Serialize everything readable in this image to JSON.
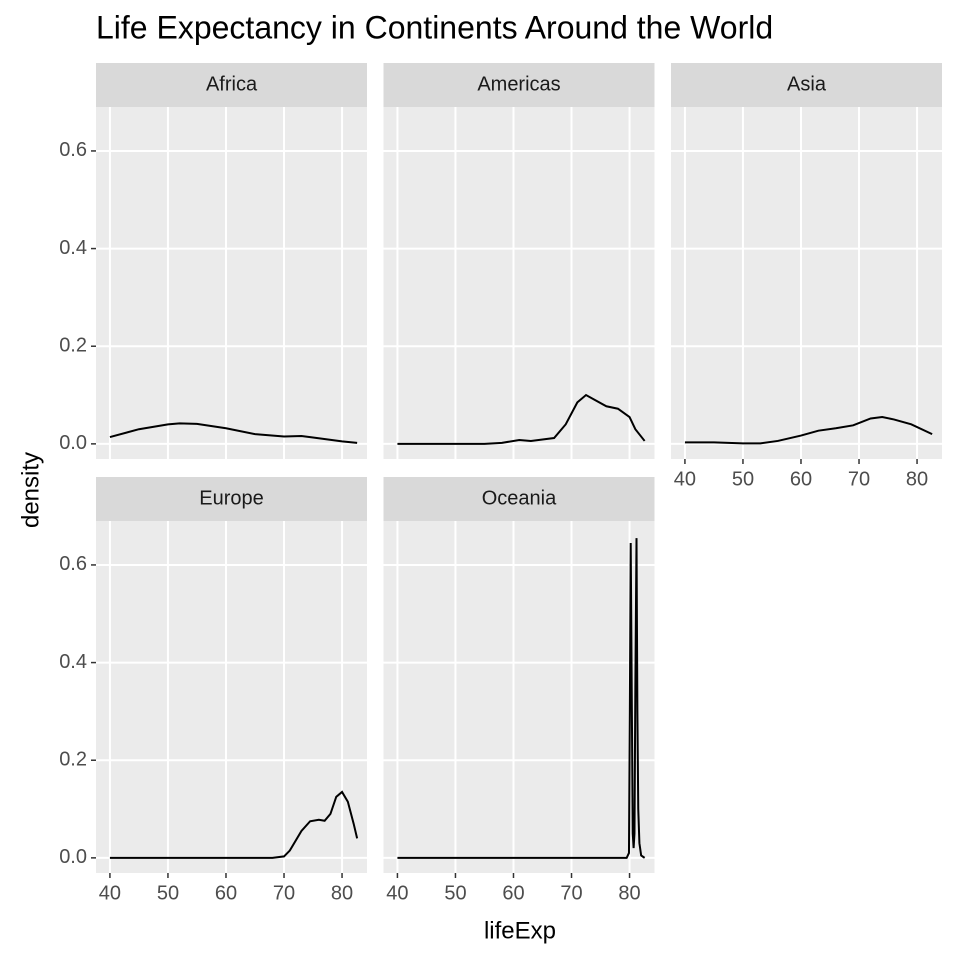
{
  "chart_data": {
    "type": "line",
    "title": "Life Expectancy in Continents Around the World",
    "xlabel": "lifeExp",
    "ylabel": "density",
    "xlim": [
      37.6,
      84.3
    ],
    "ylim": [
      -0.031,
      0.69
    ],
    "xticks": [
      40,
      50,
      60,
      70,
      80
    ],
    "yticks": [
      {
        "value": 0,
        "label": "0.0"
      },
      {
        "value": 0.2,
        "label": "0.2"
      },
      {
        "value": 0.4,
        "label": "0.4"
      },
      {
        "value": 0.6,
        "label": "0.6"
      }
    ],
    "grid": true,
    "series": [
      {
        "name": "Africa",
        "color": "#000000",
        "x": [
          40,
          45,
          50,
          52,
          55,
          60,
          65,
          70,
          73,
          75,
          80,
          82.6
        ],
        "values": [
          0.014,
          0.03,
          0.04,
          0.042,
          0.041,
          0.032,
          0.02,
          0.015,
          0.016,
          0.013,
          0.005,
          0.002
        ]
      },
      {
        "name": "Americas",
        "color": "#000000",
        "x": [
          40,
          55,
          58,
          61,
          63,
          65,
          67,
          69,
          71,
          72.5,
          74,
          76,
          78,
          80,
          81,
          82.6
        ],
        "values": [
          0,
          0,
          0.002,
          0.008,
          0.006,
          0.009,
          0.012,
          0.04,
          0.085,
          0.1,
          0.09,
          0.077,
          0.072,
          0.055,
          0.03,
          0.006
        ]
      },
      {
        "name": "Asia",
        "color": "#000000",
        "x": [
          40,
          45,
          50,
          53,
          56,
          60,
          63,
          66,
          69,
          72,
          74,
          76,
          79,
          82.6
        ],
        "values": [
          0.003,
          0.003,
          0.001,
          0.001,
          0.006,
          0.017,
          0.027,
          0.032,
          0.038,
          0.052,
          0.055,
          0.05,
          0.04,
          0.02
        ]
      },
      {
        "name": "Europe",
        "color": "#000000",
        "x": [
          40,
          68,
          70,
          71,
          73,
          74.5,
          76,
          77,
          78,
          79,
          80,
          81,
          82,
          82.6
        ],
        "values": [
          0,
          0,
          0.003,
          0.015,
          0.055,
          0.075,
          0.078,
          0.076,
          0.09,
          0.125,
          0.135,
          0.115,
          0.07,
          0.04
        ]
      },
      {
        "name": "Oceania",
        "color": "#000000",
        "x": [
          40,
          79.5,
          79.9,
          80.05,
          80.2,
          80.4,
          80.55,
          80.7,
          80.85,
          81,
          81.2,
          81.35,
          81.5,
          81.7,
          82,
          82.6
        ],
        "values": [
          0,
          0,
          0.01,
          0.3,
          0.645,
          0.3,
          0.05,
          0.02,
          0.05,
          0.35,
          0.655,
          0.3,
          0.1,
          0.03,
          0.005,
          0
        ]
      }
    ]
  }
}
